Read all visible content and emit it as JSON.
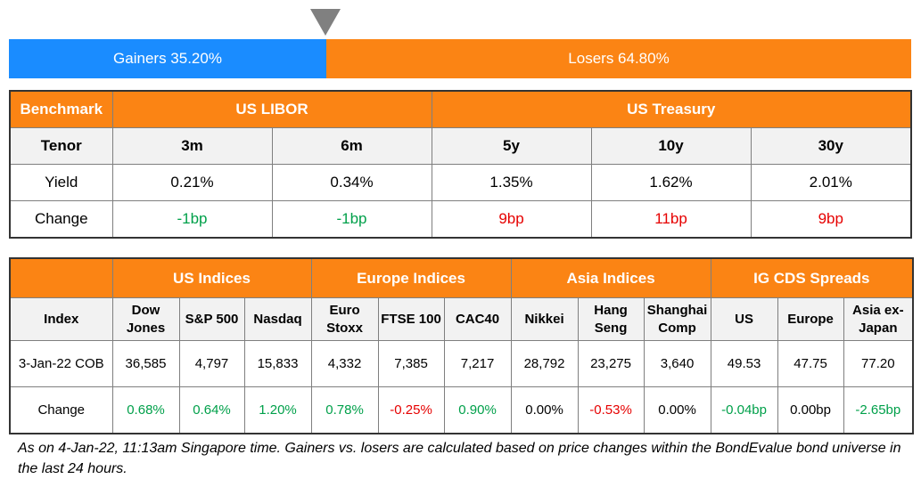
{
  "ratio_bar": {
    "gainers_label": "Gainers 35.20%",
    "losers_label": "Losers 64.80%",
    "gainers_fraction": 0.352
  },
  "rates_table": {
    "benchmark_label": "Benchmark",
    "us_libor_label": "US LIBOR",
    "us_treasury_label": "US Treasury",
    "tenor_label": "Tenor",
    "yield_label": "Yield",
    "change_label": "Change",
    "columns": [
      {
        "tenor": "3m",
        "yield": "0.21%",
        "change": "-1bp",
        "dir": "pos"
      },
      {
        "tenor": "6m",
        "yield": "0.34%",
        "change": "-1bp",
        "dir": "pos"
      },
      {
        "tenor": "5y",
        "yield": "1.35%",
        "change": "9bp",
        "dir": "neg"
      },
      {
        "tenor": "10y",
        "yield": "1.62%",
        "change": "11bp",
        "dir": "neg"
      },
      {
        "tenor": "30y",
        "yield": "2.01%",
        "change": "9bp",
        "dir": "neg"
      }
    ]
  },
  "indices_table": {
    "groups": [
      "US Indices",
      "Europe Indices",
      "Asia Indices",
      "IG CDS Spreads"
    ],
    "index_label": "Index",
    "date_label": "3-Jan-22 COB",
    "change_label": "Change",
    "columns": [
      {
        "name_l1": "Dow",
        "name_l2": "Jones",
        "value": "36,585",
        "change": "0.68%",
        "dir": "pos"
      },
      {
        "name_l1": "S&P 500",
        "name_l2": "",
        "value": "4,797",
        "change": "0.64%",
        "dir": "pos"
      },
      {
        "name_l1": "Nasdaq",
        "name_l2": "",
        "value": "15,833",
        "change": "1.20%",
        "dir": "pos"
      },
      {
        "name_l1": "Euro",
        "name_l2": "Stoxx",
        "value": "4,332",
        "change": "0.78%",
        "dir": "pos"
      },
      {
        "name_l1": "FTSE 100",
        "name_l2": "",
        "value": "7,385",
        "change": "-0.25%",
        "dir": "neg"
      },
      {
        "name_l1": "CAC40",
        "name_l2": "",
        "value": "7,217",
        "change": "0.90%",
        "dir": "pos"
      },
      {
        "name_l1": "Nikkei",
        "name_l2": "",
        "value": "28,792",
        "change": "0.00%",
        "dir": "neu"
      },
      {
        "name_l1": "Hang",
        "name_l2": "Seng",
        "value": "23,275",
        "change": "-0.53%",
        "dir": "neg"
      },
      {
        "name_l1": "Shanghai",
        "name_l2": "Comp",
        "value": "3,640",
        "change": "0.00%",
        "dir": "neu"
      },
      {
        "name_l1": "US",
        "name_l2": "",
        "value": "49.53",
        "change": "-0.04bp",
        "dir": "pos"
      },
      {
        "name_l1": "Europe",
        "name_l2": "",
        "value": "47.75",
        "change": "0.00bp",
        "dir": "neu"
      },
      {
        "name_l1": "Asia ex-",
        "name_l2": "Japan",
        "value": "77.20",
        "change": "-2.65bp",
        "dir": "pos"
      }
    ]
  },
  "footnote": "As on 4-Jan-22, 11:13am Singapore time. Gainers vs. losers are calculated based on price changes within the BondEvalue bond universe in the last 24 hours.",
  "colors": {
    "orange": "#fb8414",
    "blue": "#1a8cff",
    "green": "#00a04a",
    "red": "#e60000"
  }
}
